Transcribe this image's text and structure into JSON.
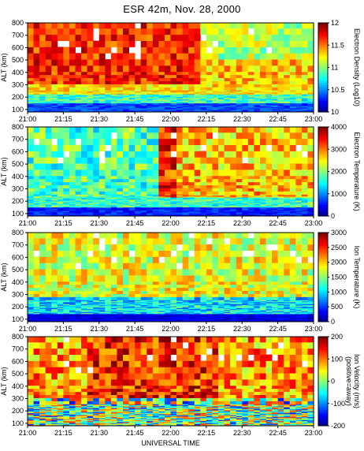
{
  "title": "ESR 42m,  Nov. 28, 2000",
  "xlabel": "UNIVERSAL TIME",
  "x_ticks": [
    "21:00",
    "21:15",
    "21:30",
    "21:45",
    "22:00",
    "22:15",
    "22:30",
    "22:45",
    "23:00"
  ],
  "chart_data": [
    {
      "type": "heatmap",
      "ylabel": "ALT (km)",
      "x_range": [
        "21:00",
        "23:00"
      ],
      "ylim": [
        80,
        800
      ],
      "y_ticks": [
        100,
        200,
        300,
        400,
        500,
        600,
        700,
        800
      ],
      "colorbar": {
        "label": "Electron Density (Log10)",
        "range": [
          10,
          12
        ],
        "ticks": [
          "12",
          "11.5",
          "11",
          "10.5",
          "10"
        ]
      },
      "values_description_only": false
    },
    {
      "type": "heatmap",
      "ylabel": "ALT (km)",
      "x_range": [
        "21:00",
        "23:00"
      ],
      "ylim": [
        80,
        800
      ],
      "y_ticks": [
        100,
        200,
        300,
        400,
        500,
        600,
        700,
        800
      ],
      "colorbar": {
        "label": "Electron Temperature (K)",
        "range": [
          0,
          4000
        ],
        "ticks": [
          "4000",
          "3000",
          "2000",
          "1000",
          "0"
        ]
      }
    },
    {
      "type": "heatmap",
      "ylabel": "ALT (km)",
      "x_range": [
        "21:00",
        "23:00"
      ],
      "ylim": [
        80,
        800
      ],
      "y_ticks": [
        100,
        200,
        300,
        400,
        500,
        600,
        700,
        800
      ],
      "colorbar": {
        "label": "Ion Temperature (K)",
        "range": [
          0,
          3000
        ],
        "ticks": [
          "3000",
          "2500",
          "2000",
          "1500",
          "1000",
          "500",
          "0"
        ]
      }
    },
    {
      "type": "heatmap",
      "ylabel": "ALT (km)",
      "x_range": [
        "21:00",
        "23:00"
      ],
      "ylim": [
        80,
        800
      ],
      "y_ticks": [
        100,
        200,
        300,
        400,
        500,
        600,
        700,
        800
      ],
      "colorbar": {
        "label": "Ion Velocity (m/s)",
        "label2": "(positive=away)",
        "range": [
          -200,
          200
        ],
        "ticks": [
          "200",
          "100",
          "0",
          "-100",
          "-200"
        ]
      }
    }
  ]
}
